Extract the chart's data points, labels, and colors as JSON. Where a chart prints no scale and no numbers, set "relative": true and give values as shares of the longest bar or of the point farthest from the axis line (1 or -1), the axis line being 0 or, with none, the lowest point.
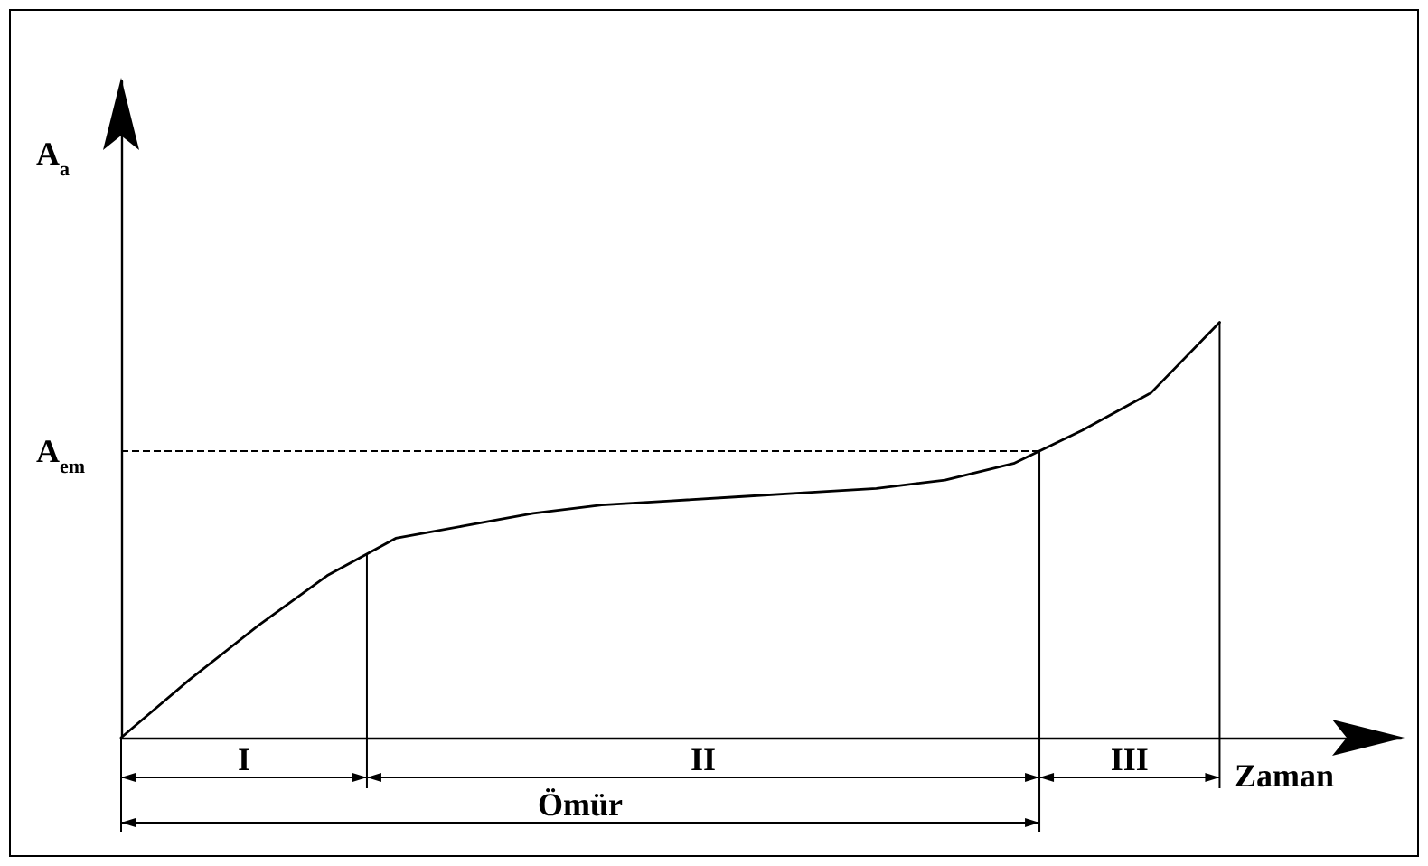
{
  "chart_data": {
    "type": "line",
    "relative": true,
    "xlabel": "Zaman",
    "ylabel": "A$_{a}$",
    "color": "#000000",
    "line_style": "solid",
    "categories": [
      null,
      null,
      null,
      null,
      null,
      null,
      null,
      null,
      null,
      null,
      null,
      null,
      null,
      null,
      null,
      null,
      null
    ],
    "values": [
      0,
      0.14,
      0.27,
      0.39,
      0.48,
      0.51,
      0.54,
      0.56,
      0.57,
      0.58,
      0.59,
      0.6,
      0.62,
      0.66,
      0.74,
      0.83,
      1
    ],
    "ref_lines": [
      {
        "axis": "y",
        "value": 0.69,
        "label": "A$_{em}$",
        "line_style": "dashed",
        "color": "#000000"
      }
    ],
    "annotations": [
      "I",
      "II",
      "III",
      "Ömür"
    ]
  }
}
